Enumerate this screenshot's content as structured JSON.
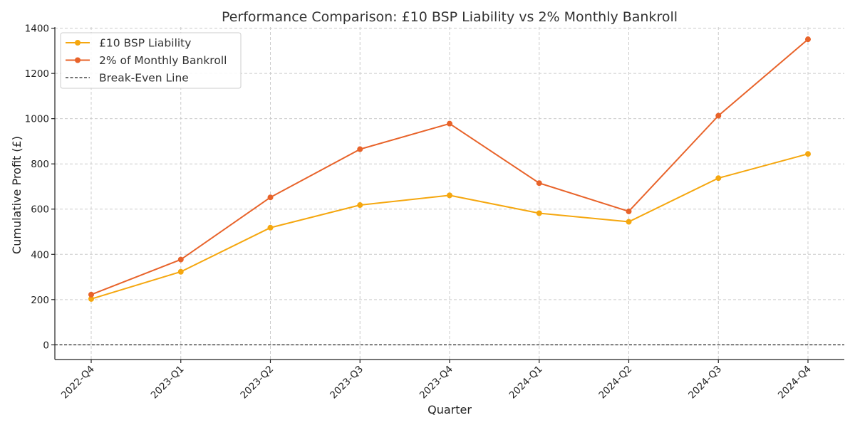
{
  "chart_data": {
    "type": "line",
    "title": "Performance Comparison: £10 BSP Liability vs 2% Monthly Bankroll",
    "xlabel": "Quarter",
    "ylabel": "Cumulative Profit (£)",
    "categories": [
      "2022-Q4",
      "2023-Q1",
      "2023-Q2",
      "2023-Q3",
      "2023-Q4",
      "2024-Q1",
      "2024-Q2",
      "2024-Q3",
      "2024-Q4"
    ],
    "yticks": [
      0,
      200,
      400,
      600,
      800,
      1000,
      1200,
      1400
    ],
    "ylim": [
      -65,
      1405
    ],
    "grid": true,
    "legend_position": "top-left",
    "series": [
      {
        "name": "£10 BSP Liability",
        "color": "#F5A70F",
        "marker": "circle",
        "values": [
          203,
          323,
          518,
          618,
          661,
          582,
          544,
          737,
          844
        ]
      },
      {
        "name": "2% of Monthly Bankroll",
        "color": "#E8632A",
        "marker": "circle",
        "values": [
          222,
          377,
          652,
          865,
          978,
          715,
          590,
          1013,
          1351
        ]
      }
    ],
    "reference_lines": [
      {
        "name": "Break-Even Line",
        "value": 0,
        "color": "#222222",
        "style": "dashed"
      }
    ]
  }
}
